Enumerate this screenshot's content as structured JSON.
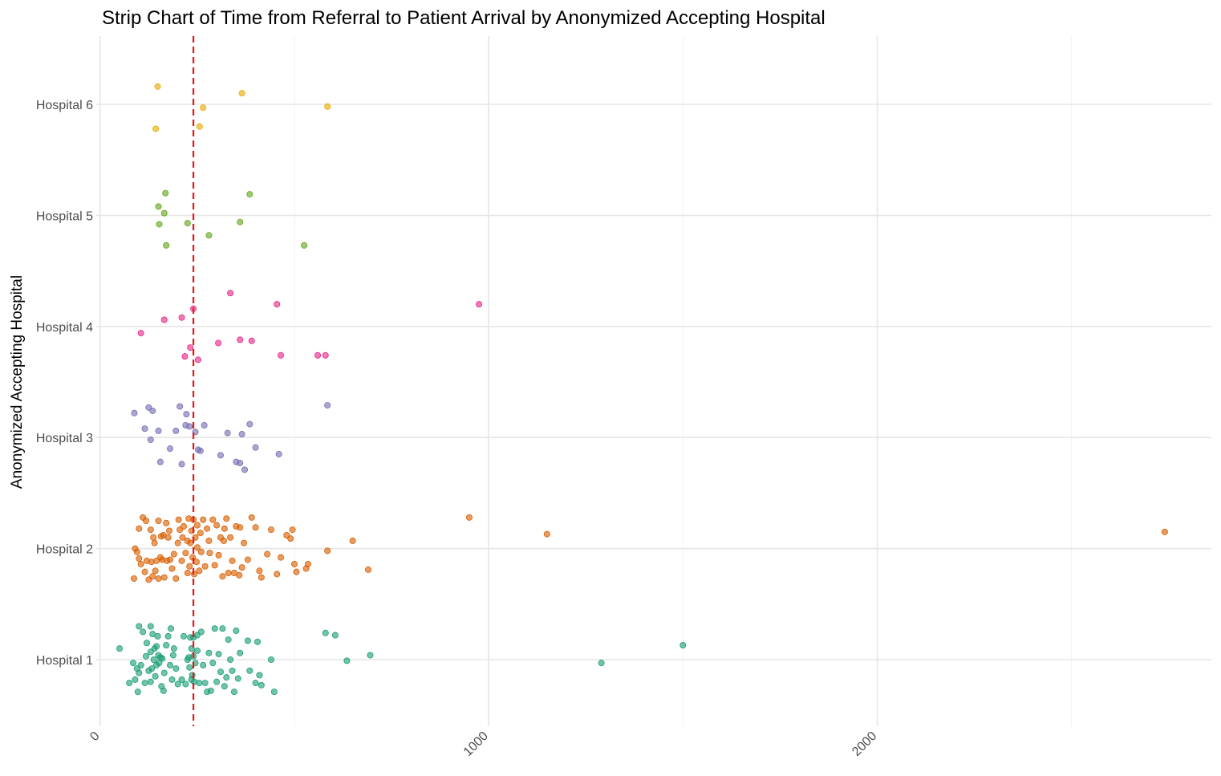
{
  "chart_data": {
    "type": "scatter",
    "title": "Strip Chart of Time from Referral to Patient Arrival by Anonymized Accepting Hospital",
    "xlabel": "",
    "ylabel": "Anonymized Accepting Hospital",
    "categories": [
      "Hospital 1",
      "Hospital 2",
      "Hospital 3",
      "Hospital 4",
      "Hospital 5",
      "Hospital 6"
    ],
    "xlim": [
      -10,
      2860
    ],
    "x_ticks": [
      "0",
      "1000",
      "2000"
    ],
    "x_tick_values": [
      0,
      1000,
      2000
    ],
    "x_minor_values": [
      500,
      1500,
      2500
    ],
    "grid": true,
    "legend": "none",
    "reference_line": {
      "x": 240,
      "color": "#e31a1c",
      "style": "dashed"
    },
    "series": [
      {
        "category": "Hospital 1",
        "color": "#1b9e77",
        "points": [
          [
            50,
            1.1
          ],
          [
            75,
            0.79
          ],
          [
            85,
            0.97
          ],
          [
            90,
            0.82
          ],
          [
            95,
            0.92
          ],
          [
            97,
            0.71
          ],
          [
            100,
            1.3
          ],
          [
            100,
            0.88
          ],
          [
            105,
            0.95
          ],
          [
            110,
            1.25
          ],
          [
            115,
            0.79
          ],
          [
            118,
            1.03
          ],
          [
            120,
            1.15
          ],
          [
            125,
            0.9
          ],
          [
            130,
            1.3
          ],
          [
            130,
            1.07
          ],
          [
            130,
            0.8
          ],
          [
            133,
            0.92
          ],
          [
            135,
            1.23
          ],
          [
            138,
            1.0
          ],
          [
            140,
            1.1
          ],
          [
            142,
            0.85
          ],
          [
            145,
            0.95
          ],
          [
            145,
            1.12
          ],
          [
            148,
            1.21
          ],
          [
            150,
            1.04
          ],
          [
            152,
            0.97
          ],
          [
            155,
            1.02
          ],
          [
            158,
            0.76
          ],
          [
            160,
            1.01
          ],
          [
            163,
            0.72
          ],
          [
            165,
            0.88
          ],
          [
            170,
            1.13
          ],
          [
            175,
            1.21
          ],
          [
            180,
            0.95
          ],
          [
            182,
            1.28
          ],
          [
            185,
            0.82
          ],
          [
            188,
            1.04
          ],
          [
            190,
            1.1
          ],
          [
            195,
            0.92
          ],
          [
            200,
            0.78
          ],
          [
            210,
            0.82
          ],
          [
            215,
            1.21
          ],
          [
            220,
            0.78
          ],
          [
            225,
            1.0
          ],
          [
            228,
            1.02
          ],
          [
            230,
            0.93
          ],
          [
            232,
            1.2
          ],
          [
            235,
            0.82
          ],
          [
            235,
            1.1
          ],
          [
            237,
            0.86
          ],
          [
            240,
            1.03
          ],
          [
            240,
            1.2
          ],
          [
            242,
            0.8
          ],
          [
            245,
            0.97
          ],
          [
            250,
            1.22
          ],
          [
            250,
            1.08
          ],
          [
            255,
            0.79
          ],
          [
            260,
            1.25
          ],
          [
            265,
            0.95
          ],
          [
            270,
            0.79
          ],
          [
            275,
            0.71
          ],
          [
            280,
            1.06
          ],
          [
            285,
            0.72
          ],
          [
            290,
            0.97
          ],
          [
            295,
            1.28
          ],
          [
            300,
            0.8
          ],
          [
            305,
            1.05
          ],
          [
            310,
            0.89
          ],
          [
            315,
            1.28
          ],
          [
            320,
            0.76
          ],
          [
            325,
            0.84
          ],
          [
            330,
            1.18
          ],
          [
            335,
            1.0
          ],
          [
            340,
            0.9
          ],
          [
            345,
            0.71
          ],
          [
            350,
            1.26
          ],
          [
            355,
            0.83
          ],
          [
            360,
            1.06
          ],
          [
            380,
            1.17
          ],
          [
            385,
            0.9
          ],
          [
            400,
            0.79
          ],
          [
            405,
            1.16
          ],
          [
            410,
            0.86
          ],
          [
            415,
            0.77
          ],
          [
            440,
            1.0
          ],
          [
            448,
            0.71
          ],
          [
            580,
            1.24
          ],
          [
            605,
            1.22
          ],
          [
            635,
            0.99
          ],
          [
            695,
            1.04
          ],
          [
            1290,
            0.97
          ],
          [
            1500,
            1.13
          ]
        ]
      },
      {
        "category": "Hospital 2",
        "color": "#d95f02",
        "points": [
          [
            87,
            1.73
          ],
          [
            90,
            2.0
          ],
          [
            95,
            1.97
          ],
          [
            100,
            1.91
          ],
          [
            100,
            2.18
          ],
          [
            105,
            1.86
          ],
          [
            110,
            2.28
          ],
          [
            115,
            1.79
          ],
          [
            118,
            2.25
          ],
          [
            120,
            1.89
          ],
          [
            125,
            1.72
          ],
          [
            130,
            2.17
          ],
          [
            132,
            1.88
          ],
          [
            135,
            1.75
          ],
          [
            137,
            2.1
          ],
          [
            140,
            2.05
          ],
          [
            142,
            1.8
          ],
          [
            145,
            1.89
          ],
          [
            150,
            2.25
          ],
          [
            150,
            1.73
          ],
          [
            155,
            1.92
          ],
          [
            157,
            2.11
          ],
          [
            160,
            1.9
          ],
          [
            163,
            2.12
          ],
          [
            165,
            1.74
          ],
          [
            170,
            2.23
          ],
          [
            172,
            1.89
          ],
          [
            175,
            2.1
          ],
          [
            178,
            2.16
          ],
          [
            180,
            1.9
          ],
          [
            185,
            1.82
          ],
          [
            190,
            1.95
          ],
          [
            195,
            1.73
          ],
          [
            200,
            2.05
          ],
          [
            202,
            2.26
          ],
          [
            205,
            2.17
          ],
          [
            210,
            1.89
          ],
          [
            212,
            2.1
          ],
          [
            215,
            2.2
          ],
          [
            220,
            1.96
          ],
          [
            225,
            1.78
          ],
          [
            225,
            2.07
          ],
          [
            228,
            2.27
          ],
          [
            230,
            1.84
          ],
          [
            232,
            2.05
          ],
          [
            235,
            2.16
          ],
          [
            238,
            1.92
          ],
          [
            240,
            2.26
          ],
          [
            242,
            1.77
          ],
          [
            245,
            2.1
          ],
          [
            248,
            1.88
          ],
          [
            250,
            2.01
          ],
          [
            250,
            2.21
          ],
          [
            255,
            1.8
          ],
          [
            258,
            2.14
          ],
          [
            260,
            1.97
          ],
          [
            265,
            2.26
          ],
          [
            270,
            1.84
          ],
          [
            275,
            2.18
          ],
          [
            280,
            2.07
          ],
          [
            282,
            1.96
          ],
          [
            290,
            2.26
          ],
          [
            295,
            1.85
          ],
          [
            300,
            2.21
          ],
          [
            305,
            1.94
          ],
          [
            310,
            2.1
          ],
          [
            315,
            1.75
          ],
          [
            318,
            2.07
          ],
          [
            320,
            2.18
          ],
          [
            325,
            2.27
          ],
          [
            330,
            1.78
          ],
          [
            335,
            2.1
          ],
          [
            340,
            1.89
          ],
          [
            345,
            1.78
          ],
          [
            350,
            2.2
          ],
          [
            358,
            1.76
          ],
          [
            360,
            2.19
          ],
          [
            365,
            1.83
          ],
          [
            370,
            2.05
          ],
          [
            380,
            1.9
          ],
          [
            390,
            2.28
          ],
          [
            400,
            2.19
          ],
          [
            410,
            1.8
          ],
          [
            415,
            1.74
          ],
          [
            430,
            1.95
          ],
          [
            440,
            2.17
          ],
          [
            455,
            1.77
          ],
          [
            465,
            1.92
          ],
          [
            480,
            2.12
          ],
          [
            490,
            2.09
          ],
          [
            495,
            2.17
          ],
          [
            500,
            1.86
          ],
          [
            505,
            1.79
          ],
          [
            530,
            1.82
          ],
          [
            535,
            1.86
          ],
          [
            585,
            1.98
          ],
          [
            650,
            2.07
          ],
          [
            690,
            1.81
          ],
          [
            950,
            2.28
          ],
          [
            1150,
            2.13
          ],
          [
            2740,
            2.15
          ]
        ]
      },
      {
        "category": "Hospital 3",
        "color": "#7570b3",
        "points": [
          [
            88,
            3.22
          ],
          [
            115,
            3.08
          ],
          [
            125,
            3.27
          ],
          [
            130,
            2.98
          ],
          [
            135,
            3.24
          ],
          [
            150,
            3.06
          ],
          [
            155,
            2.78
          ],
          [
            180,
            2.9
          ],
          [
            195,
            3.06
          ],
          [
            205,
            3.28
          ],
          [
            210,
            2.76
          ],
          [
            220,
            3.11
          ],
          [
            222,
            3.21
          ],
          [
            230,
            3.1
          ],
          [
            245,
            3.05
          ],
          [
            252,
            2.89
          ],
          [
            258,
            2.88
          ],
          [
            268,
            3.11
          ],
          [
            310,
            2.84
          ],
          [
            328,
            3.04
          ],
          [
            350,
            2.78
          ],
          [
            360,
            2.77
          ],
          [
            365,
            3.03
          ],
          [
            372,
            2.71
          ],
          [
            385,
            3.12
          ],
          [
            400,
            2.91
          ],
          [
            460,
            2.85
          ],
          [
            585,
            3.29
          ]
        ]
      },
      {
        "category": "Hospital 4",
        "color": "#e7298a",
        "points": [
          [
            105,
            3.94
          ],
          [
            165,
            4.06
          ],
          [
            210,
            4.08
          ],
          [
            218,
            3.73
          ],
          [
            232,
            3.81
          ],
          [
            240,
            4.16
          ],
          [
            252,
            3.7
          ],
          [
            304,
            3.85
          ],
          [
            335,
            4.3
          ],
          [
            360,
            3.88
          ],
          [
            390,
            3.87
          ],
          [
            455,
            4.2
          ],
          [
            465,
            3.74
          ],
          [
            560,
            3.74
          ],
          [
            580,
            3.74
          ],
          [
            975,
            4.2
          ]
        ]
      },
      {
        "category": "Hospital 5",
        "color": "#66a61e",
        "points": [
          [
            150,
            5.08
          ],
          [
            152,
            4.92
          ],
          [
            165,
            5.02
          ],
          [
            168,
            5.2
          ],
          [
            170,
            4.73
          ],
          [
            225,
            4.93
          ],
          [
            280,
            4.82
          ],
          [
            360,
            4.94
          ],
          [
            385,
            5.19
          ],
          [
            525,
            4.73
          ]
        ]
      },
      {
        "category": "Hospital 6",
        "color": "#e6ab02",
        "points": [
          [
            143,
            5.78
          ],
          [
            148,
            6.16
          ],
          [
            256,
            5.8
          ],
          [
            265,
            5.97
          ],
          [
            365,
            6.1
          ],
          [
            585,
            5.98
          ]
        ]
      }
    ]
  }
}
